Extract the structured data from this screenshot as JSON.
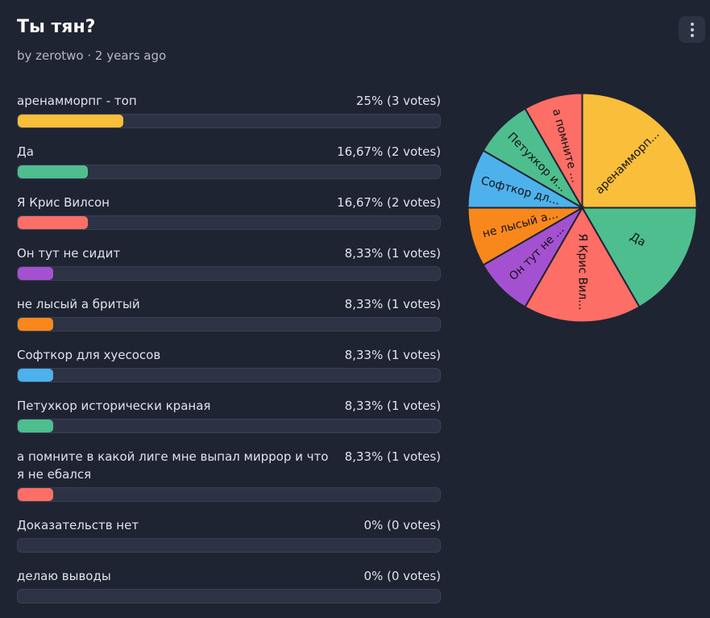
{
  "poll": {
    "title": "Ты тян?",
    "meta": "by zerotwo · 2 years ago"
  },
  "options": [
    {
      "label": "аренамморпг - топ",
      "result": "25% (3 votes)",
      "percent": 25,
      "votes": 3,
      "color": "#f9be3a",
      "pie_label": "аренамморп..."
    },
    {
      "label": "Да",
      "result": "16,67% (2 votes)",
      "percent": 16.67,
      "votes": 2,
      "color": "#4ebe8f",
      "pie_label": "Да"
    },
    {
      "label": "Я Крис Вилсон",
      "result": "16,67% (2 votes)",
      "percent": 16.67,
      "votes": 2,
      "color": "#fc6e66",
      "pie_label": "Я Крис Вил..."
    },
    {
      "label": "Он тут не сидит",
      "result": "8,33% (1 votes)",
      "percent": 8.33,
      "votes": 1,
      "color": "#a451d1",
      "pie_label": "Он тут не ..."
    },
    {
      "label": "не лысый а бритый",
      "result": "8,33% (1 votes)",
      "percent": 8.33,
      "votes": 1,
      "color": "#f9881c",
      "pie_label": "не лысый а..."
    },
    {
      "label": "Софткор для хуесосов",
      "result": "8,33% (1 votes)",
      "percent": 8.33,
      "votes": 1,
      "color": "#4db1ec",
      "pie_label": "Софткор дл..."
    },
    {
      "label": "Петухкор исторически краная",
      "result": "8,33% (1 votes)",
      "percent": 8.33,
      "votes": 1,
      "color": "#4ebe8f",
      "pie_label": "Петухкор и..."
    },
    {
      "label": "а помните в какой лиге мне выпал миррор и что я не ебался",
      "result": "8,33% (1 votes)",
      "percent": 8.33,
      "votes": 1,
      "color": "#fc6e66",
      "pie_label": "а помните ..."
    },
    {
      "label": "Доказательств нет",
      "result": "0% (0 votes)",
      "percent": 0,
      "votes": 0,
      "color": "#4db1ec",
      "pie_label": ""
    },
    {
      "label": "делаю выводы",
      "result": "0% (0 votes)",
      "percent": 0,
      "votes": 0,
      "color": "#a451d1",
      "pie_label": ""
    }
  ],
  "chart_data": {
    "type": "pie",
    "categories": [
      "аренамморпг - топ",
      "Да",
      "Я Крис Вилсон",
      "Он тут не сидит",
      "не лысый а бритый",
      "Софткор для хуесосов",
      "Петухкор исторически краная",
      "а помните в какой лиге мне выпал миррор и что я не ебался"
    ],
    "values": [
      3,
      2,
      2,
      1,
      1,
      1,
      1,
      1
    ]
  }
}
